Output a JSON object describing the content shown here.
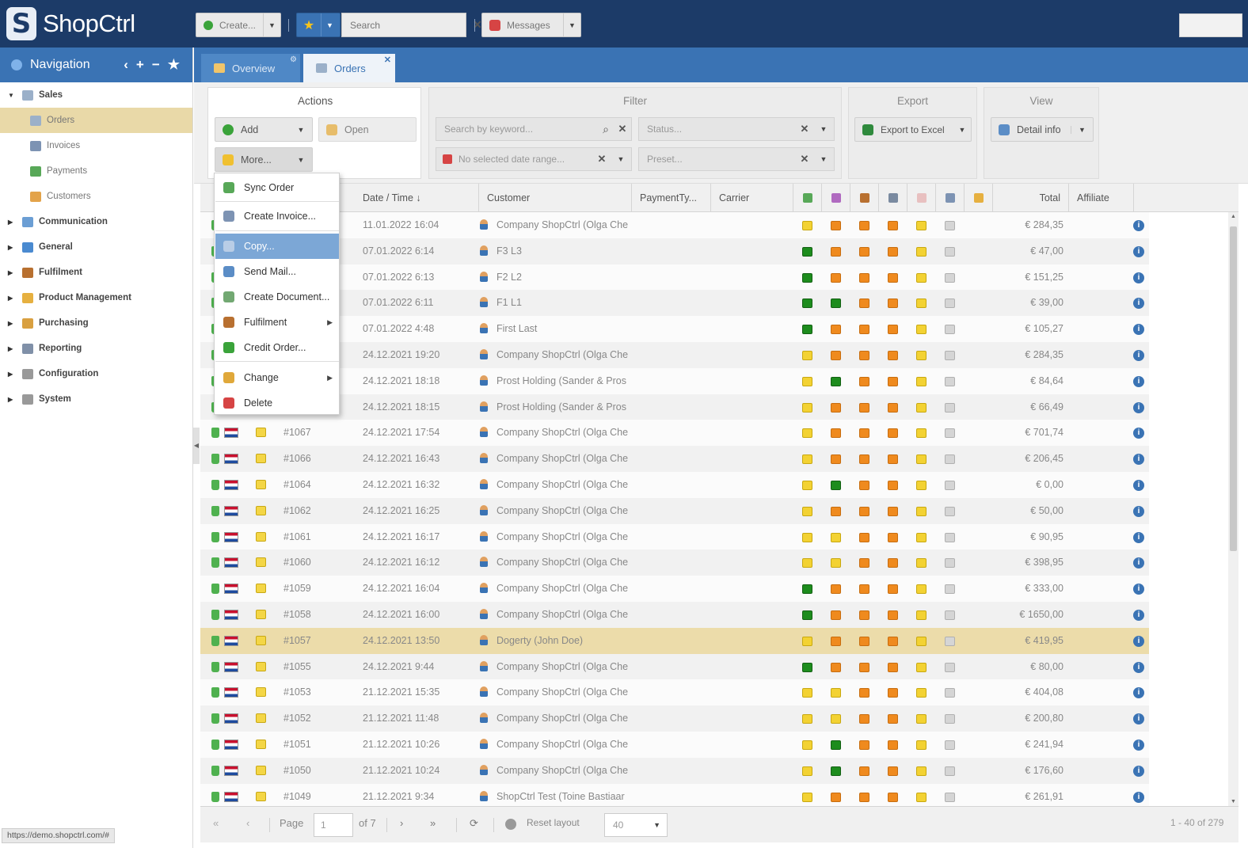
{
  "app": {
    "name": "ShopCtrl"
  },
  "topbar": {
    "create_label": "Create...",
    "search_placeholder": "Search",
    "messages_label": "Messages"
  },
  "navigation": {
    "title": "Navigation",
    "items": [
      {
        "label": "Sales",
        "level": "top",
        "expanded": true,
        "icon": "cart-icon",
        "color": "#9bb0c9"
      },
      {
        "label": "Orders",
        "level": "sub",
        "active": true,
        "icon": "orders-icon",
        "color": "#9bb0c9"
      },
      {
        "label": "Invoices",
        "level": "sub",
        "icon": "invoice-icon",
        "color": "#7d93b3"
      },
      {
        "label": "Payments",
        "level": "sub",
        "icon": "payment-icon",
        "color": "#58a858"
      },
      {
        "label": "Customers",
        "level": "sub",
        "icon": "customers-icon",
        "color": "#e3a34a"
      },
      {
        "label": "Communication",
        "level": "top",
        "icon": "chat-icon",
        "color": "#6b9ed4"
      },
      {
        "label": "General",
        "level": "top",
        "icon": "globe-icon",
        "color": "#4a8ad0"
      },
      {
        "label": "Fulfilment",
        "level": "top",
        "icon": "box-icon",
        "color": "#b87030"
      },
      {
        "label": "Product Management",
        "level": "top",
        "icon": "package-icon",
        "color": "#e6b040"
      },
      {
        "label": "Purchasing",
        "level": "top",
        "icon": "purchasing-icon",
        "color": "#d9a040"
      },
      {
        "label": "Reporting",
        "level": "top",
        "icon": "report-icon",
        "color": "#8090a8"
      },
      {
        "label": "Configuration",
        "level": "top",
        "icon": "gear-icon",
        "color": "#999999"
      },
      {
        "label": "System",
        "level": "top",
        "icon": "cog-icon",
        "color": "#999999"
      }
    ]
  },
  "tabs": [
    {
      "label": "Overview"
    },
    {
      "label": "Orders"
    }
  ],
  "toolbar": {
    "actions": {
      "title": "Actions",
      "add_label": "Add",
      "open_label": "Open",
      "more_label": "More..."
    },
    "filter": {
      "title": "Filter",
      "keyword_placeholder": "Search by keyword...",
      "status_placeholder": "Status...",
      "date_placeholder": "No selected date range...",
      "preset_placeholder": "Preset..."
    },
    "export": {
      "title": "Export",
      "excel_label": "Export to Excel"
    },
    "view": {
      "title": "View",
      "detail_label": "Detail info"
    }
  },
  "more_menu": [
    {
      "label": "Sync Order",
      "icon": "sync-icon",
      "color": "#58a858"
    },
    {
      "label": "Create Invoice...",
      "icon": "invoice-icon",
      "color": "#7d93b3"
    },
    {
      "label": "Copy...",
      "icon": "copy-icon",
      "color": "#b9cde6",
      "active": true
    },
    {
      "label": "Send Mail...",
      "icon": "mail-icon",
      "color": "#5b8dc6"
    },
    {
      "label": "Create Document...",
      "icon": "document-icon",
      "color": "#72a872"
    },
    {
      "label": "Fulfilment",
      "icon": "box-icon",
      "color": "#b87030",
      "submenu": true
    },
    {
      "label": "Credit Order...",
      "icon": "credit-icon",
      "color": "#3aa33a"
    },
    {
      "label": "Change",
      "icon": "pencil-icon",
      "color": "#e0a83a",
      "submenu": true
    },
    {
      "label": "Delete",
      "icon": "delete-icon",
      "color": "#d64444"
    }
  ],
  "grid": {
    "columns": [
      "Date / Time",
      "Customer",
      "PaymentTy...",
      "Carrier",
      "Total",
      "Affiliate"
    ],
    "sort_indicator": "↓",
    "rows": [
      {
        "order": "",
        "date": "11.01.2022 16:04",
        "customer": "Company ShopCtrl (Olga Che",
        "status": [
          "y",
          "o",
          "o",
          "o",
          "y",
          "gr"
        ],
        "total": "€ 284,35"
      },
      {
        "order": "",
        "date": "07.01.2022 6:14",
        "customer": "F3 L3",
        "status": [
          "g",
          "o",
          "o",
          "o",
          "y",
          "gr"
        ],
        "total": "€ 47,00"
      },
      {
        "order": "",
        "date": "07.01.2022 6:13",
        "customer": "F2 L2",
        "status": [
          "g",
          "o",
          "o",
          "o",
          "y",
          "gr"
        ],
        "total": "€ 151,25"
      },
      {
        "order": "",
        "date": "07.01.2022 6:11",
        "customer": "F1 L1",
        "status": [
          "g",
          "g",
          "o",
          "o",
          "y",
          "gr"
        ],
        "total": "€ 39,00"
      },
      {
        "order": "",
        "date": "07.01.2022 4:48",
        "customer": "First Last",
        "status": [
          "g",
          "o",
          "o",
          "o",
          "y",
          "gr"
        ],
        "total": "€ 105,27"
      },
      {
        "order": "",
        "date": "24.12.2021 19:20",
        "customer": "Company ShopCtrl (Olga Che",
        "status": [
          "y",
          "o",
          "o",
          "o",
          "y",
          "gr"
        ],
        "total": "€ 284,35"
      },
      {
        "order": "",
        "date": "24.12.2021 18:18",
        "customer": "Prost Holding (Sander & Pros",
        "status": [
          "y",
          "g",
          "o",
          "o",
          "y",
          "gr"
        ],
        "total": "€ 84,64"
      },
      {
        "order": "",
        "date": "24.12.2021 18:15",
        "customer": "Prost Holding (Sander & Pros",
        "status": [
          "y",
          "o",
          "o",
          "o",
          "y",
          "gr"
        ],
        "total": "€ 66,49"
      },
      {
        "order": "#1067",
        "date": "24.12.2021 17:54",
        "customer": "Company ShopCtrl (Olga Che",
        "status": [
          "y",
          "o",
          "o",
          "o",
          "y",
          "gr"
        ],
        "total": "€ 701,74"
      },
      {
        "order": "#1066",
        "date": "24.12.2021 16:43",
        "customer": "Company ShopCtrl (Olga Che",
        "status": [
          "y",
          "o",
          "o",
          "o",
          "y",
          "gr"
        ],
        "total": "€ 206,45"
      },
      {
        "order": "#1064",
        "date": "24.12.2021 16:32",
        "customer": "Company ShopCtrl (Olga Che",
        "status": [
          "y",
          "g",
          "o",
          "o",
          "y",
          "gr"
        ],
        "total": "€ 0,00"
      },
      {
        "order": "#1062",
        "date": "24.12.2021 16:25",
        "customer": "Company ShopCtrl (Olga Che",
        "status": [
          "y",
          "o",
          "o",
          "o",
          "y",
          "gr"
        ],
        "total": "€ 50,00"
      },
      {
        "order": "#1061",
        "date": "24.12.2021 16:17",
        "customer": "Company ShopCtrl (Olga Che",
        "status": [
          "y",
          "y",
          "o",
          "o",
          "y",
          "gr"
        ],
        "total": "€ 90,95"
      },
      {
        "order": "#1060",
        "date": "24.12.2021 16:12",
        "customer": "Company ShopCtrl (Olga Che",
        "status": [
          "y",
          "y",
          "o",
          "o",
          "y",
          "gr"
        ],
        "total": "€ 398,95"
      },
      {
        "order": "#1059",
        "date": "24.12.2021 16:04",
        "customer": "Company ShopCtrl (Olga Che",
        "status": [
          "g",
          "o",
          "o",
          "o",
          "y",
          "gr"
        ],
        "total": "€ 333,00"
      },
      {
        "order": "#1058",
        "date": "24.12.2021 16:00",
        "customer": "Company ShopCtrl (Olga Che",
        "status": [
          "g",
          "o",
          "o",
          "o",
          "y",
          "gr"
        ],
        "total": "€ 1650,00"
      },
      {
        "order": "#1057",
        "date": "24.12.2021 13:50",
        "customer": "Dogerty (John Doe)",
        "status": [
          "y",
          "o",
          "o",
          "o",
          "y",
          "gr"
        ],
        "total": "€ 419,95",
        "selected": true
      },
      {
        "order": "#1055",
        "date": "24.12.2021 9:44",
        "customer": "Company ShopCtrl (Olga Che",
        "status": [
          "g",
          "o",
          "o",
          "o",
          "y",
          "gr"
        ],
        "total": "€ 80,00"
      },
      {
        "order": "#1053",
        "date": "21.12.2021 15:35",
        "customer": "Company ShopCtrl (Olga Che",
        "status": [
          "y",
          "y",
          "o",
          "o",
          "y",
          "gr"
        ],
        "total": "€ 404,08"
      },
      {
        "order": "#1052",
        "date": "21.12.2021 11:48",
        "customer": "Company ShopCtrl (Olga Che",
        "status": [
          "y",
          "y",
          "o",
          "o",
          "y",
          "gr"
        ],
        "total": "€ 200,80"
      },
      {
        "order": "#1051",
        "date": "21.12.2021 10:26",
        "customer": "Company ShopCtrl (Olga Che",
        "status": [
          "y",
          "g",
          "o",
          "o",
          "y",
          "gr"
        ],
        "total": "€ 241,94"
      },
      {
        "order": "#1050",
        "date": "21.12.2021 10:24",
        "customer": "Company ShopCtrl (Olga Che",
        "status": [
          "y",
          "g",
          "o",
          "o",
          "y",
          "gr"
        ],
        "total": "€ 176,60"
      },
      {
        "order": "#1049",
        "date": "21.12.2021 9:34",
        "customer": "ShopCtrl Test (Toine Bastiaar",
        "status": [
          "y",
          "o",
          "o",
          "o",
          "y",
          "gr"
        ],
        "total": "€ 261,91"
      }
    ]
  },
  "pager": {
    "page_label": "Page",
    "page_value": "1",
    "of_label": "of 7",
    "reset_label": "Reset layout",
    "page_size": "40",
    "summary": "1 - 40 of 279"
  },
  "statusbar": {
    "url": "https://demo.shopctrl.com/#"
  }
}
